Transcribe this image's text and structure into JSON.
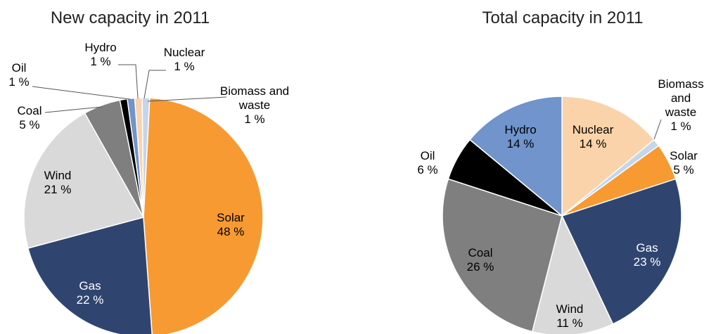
{
  "chart_data": [
    {
      "type": "pie",
      "title": "New capacity in 2011",
      "categories": [
        "Solar",
        "Gas",
        "Wind",
        "Coal",
        "Oil",
        "Hydro",
        "Nuclear",
        "Biomass and waste"
      ],
      "values": [
        48,
        22,
        21,
        5,
        1,
        1,
        1,
        1
      ],
      "value_labels": [
        "48 %",
        "22 %",
        "21 %",
        "5 %",
        "1 %",
        "1 %",
        "1 %",
        "1 %"
      ],
      "colors": [
        "#f79a32",
        "#2f4570",
        "#d9d9d9",
        "#7f7f7f",
        "#000000",
        "#7094cb",
        "#fbd3aa",
        "#c5d5ea"
      ]
    },
    {
      "type": "pie",
      "title": "Total capacity in 2011",
      "categories": [
        "Nuclear",
        "Biomass and waste",
        "Solar",
        "Gas",
        "Wind",
        "Coal",
        "Oil",
        "Hydro"
      ],
      "values": [
        14,
        1,
        5,
        23,
        11,
        26,
        6,
        14
      ],
      "value_labels": [
        "14 %",
        "1 %",
        "5 %",
        "23 %",
        "11 %",
        "26 %",
        "6 %",
        "14 %"
      ],
      "colors": [
        "#fbd3aa",
        "#c5d5ea",
        "#f79a32",
        "#2f4570",
        "#d9d9d9",
        "#7f7f7f",
        "#000000",
        "#7094cb"
      ]
    }
  ]
}
